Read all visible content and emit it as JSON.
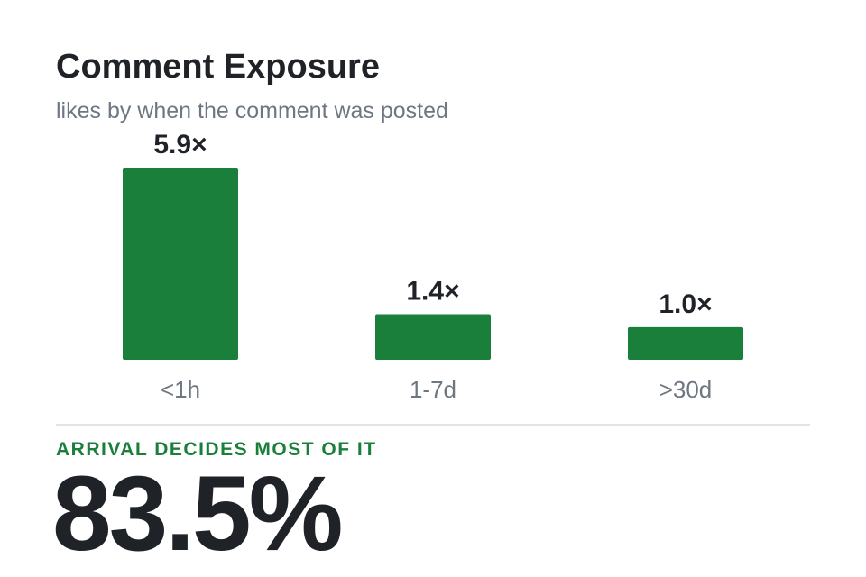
{
  "chart_data": {
    "type": "bar",
    "title": "Comment Exposure",
    "subtitle": "likes by when the comment was posted",
    "categories": [
      "<1h",
      "1-7d",
      ">30d"
    ],
    "values": [
      5.9,
      1.4,
      1.0
    ],
    "value_labels": [
      "5.9×",
      "1.4×",
      "1.0×"
    ],
    "color": "#1a7f3a"
  },
  "highlight": {
    "label": "ARRIVAL DECIDES MOST OF IT",
    "value": "83.5%"
  }
}
